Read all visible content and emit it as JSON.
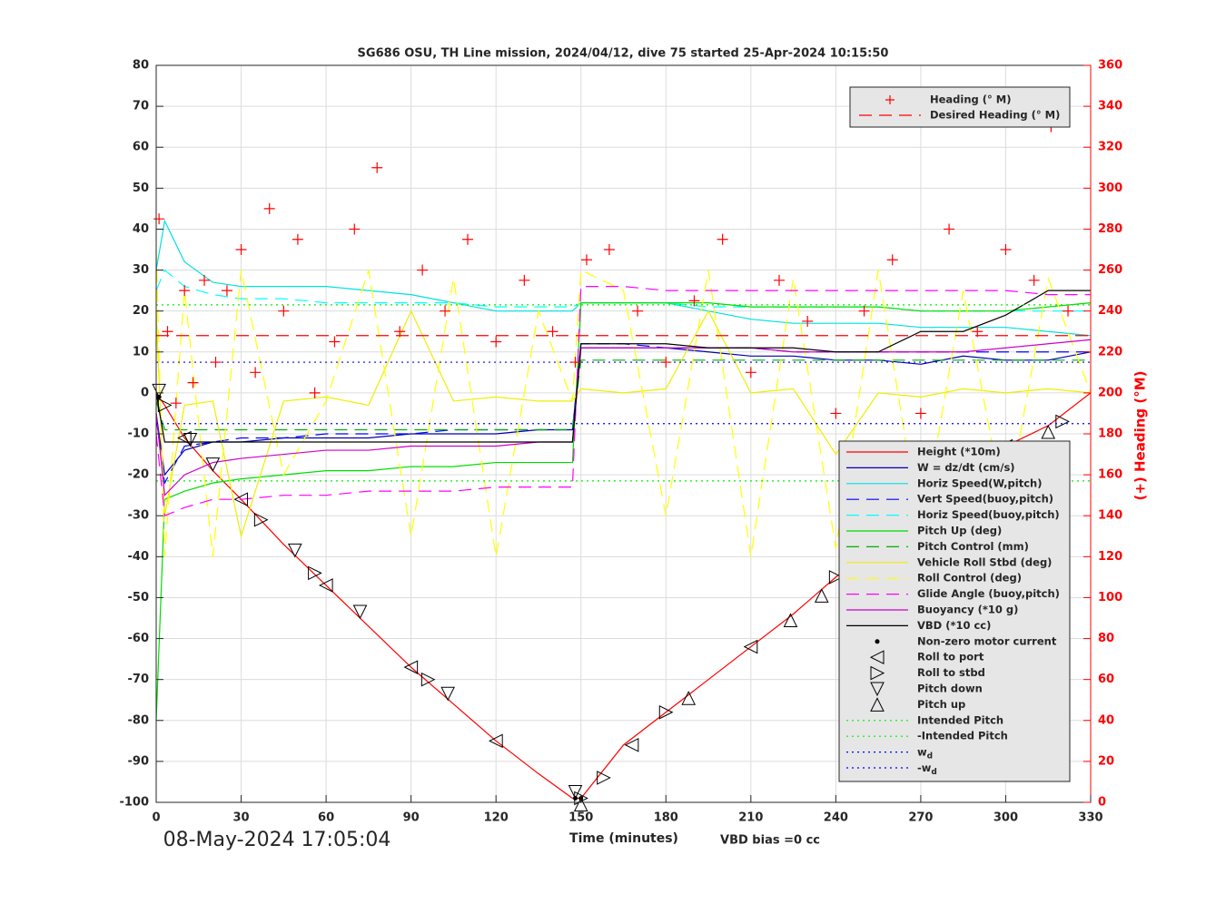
{
  "chart_data": {
    "type": "line",
    "title": "SG686 OSU, TH Line mission, 2024/04/12, dive 75 started 25-Apr-2024 10:15:50",
    "xlabel": "Time (minutes)",
    "y2label": "(+) Heading (°M)",
    "annotations": [
      "08-May-2024 17:05:04",
      "VBD bias =0 cc"
    ],
    "xlim": [
      0,
      330
    ],
    "xticks": [
      0,
      30,
      60,
      90,
      120,
      150,
      180,
      210,
      240,
      270,
      300,
      330
    ],
    "ylim": [
      -100,
      80
    ],
    "yticks": [
      -100,
      -90,
      -80,
      -70,
      -60,
      -50,
      -40,
      -30,
      -20,
      -10,
      0,
      10,
      20,
      30,
      40,
      50,
      60,
      70,
      80
    ],
    "y2lim": [
      0,
      360
    ],
    "y2ticks": [
      0,
      20,
      40,
      60,
      80,
      100,
      120,
      140,
      160,
      180,
      200,
      220,
      240,
      260,
      280,
      300,
      320,
      340,
      360
    ],
    "grid": true,
    "x": [
      0,
      3,
      10,
      20,
      30,
      45,
      60,
      75,
      90,
      105,
      120,
      135,
      147,
      150,
      165,
      180,
      195,
      210,
      225,
      240,
      255,
      270,
      285,
      300,
      315,
      330
    ],
    "series": [
      {
        "name": "Height (*10m)",
        "color": "#ff0000",
        "linestyle": "-",
        "marker": "none",
        "values": [
          0,
          -3,
          -11,
          -19,
          -26,
          -37,
          -47,
          -57,
          -67,
          -76,
          -85,
          -93,
          -99,
          -99,
          -86,
          -78,
          -70,
          -62,
          -54,
          -45,
          -37,
          -29,
          -20,
          -13,
          -8,
          0
        ]
      },
      {
        "name": "W = dz/dt (cm/s)",
        "color": "#0000b0",
        "linestyle": "-",
        "marker": "none",
        "values": [
          -5,
          -20,
          -14,
          -12,
          -12,
          -11,
          -11,
          -11,
          -10,
          -10,
          -10,
          -9,
          -9,
          11,
          11,
          11,
          10,
          9,
          9,
          8,
          8,
          7,
          9,
          8,
          8,
          10
        ]
      },
      {
        "name": "Horiz Speed(W,pitch)",
        "color": "#00e0e0",
        "linestyle": "-",
        "marker": "none",
        "values": [
          30,
          42,
          32,
          27,
          26,
          26,
          26,
          25,
          24,
          22,
          20,
          20,
          20,
          22,
          22,
          22,
          20,
          18,
          17,
          17,
          17,
          16,
          16,
          16,
          15,
          14
        ]
      },
      {
        "name": "Vert Speed(buoy,pitch)",
        "color": "#0000ff",
        "linestyle": "--",
        "marker": "none",
        "values": [
          -6,
          -22,
          -13,
          -12,
          -11,
          -11,
          -10,
          -10,
          -10,
          -9,
          -9,
          -9,
          -9,
          12,
          12,
          11,
          11,
          11,
          10,
          10,
          10,
          10,
          10,
          10,
          10,
          10
        ]
      },
      {
        "name": "Horiz Speed(buoy,pitch)",
        "color": "#00ffff",
        "linestyle": "--",
        "marker": "none",
        "values": [
          25,
          30,
          26,
          24,
          23,
          23,
          22,
          22,
          22,
          22,
          21,
          21,
          21,
          22,
          22,
          22,
          21,
          21,
          21,
          21,
          21,
          20,
          20,
          20,
          20,
          20
        ]
      },
      {
        "name": "Pitch Up (deg)",
        "color": "#00dd00",
        "linestyle": "-",
        "marker": "none",
        "values": [
          -80,
          -26,
          -24,
          -22,
          -21,
          -20,
          -19,
          -19,
          -18,
          -18,
          -17,
          -17,
          -17,
          22,
          22,
          22,
          22,
          21,
          21,
          21,
          21,
          20,
          20,
          20,
          21,
          22
        ]
      },
      {
        "name": "Pitch Control (mm)",
        "color": "#00b000",
        "linestyle": "--",
        "marker": "none",
        "values": [
          -2,
          -9,
          -9,
          -9,
          -9,
          -9,
          -9,
          -9,
          -9,
          -9,
          -9,
          -9,
          -9,
          8,
          8,
          8,
          8,
          8,
          8,
          8,
          8,
          8,
          8,
          8,
          8,
          8
        ]
      },
      {
        "name": "Vehicle Roll Stbd (deg)",
        "color": "#eeee00",
        "linestyle": "-",
        "marker": "none",
        "values": [
          20,
          -30,
          -3,
          -2,
          -35,
          -2,
          -1,
          -3,
          20,
          -2,
          -1,
          -2,
          -2,
          1,
          0,
          1,
          20,
          0,
          1,
          -15,
          0,
          -1,
          1,
          0,
          1,
          0
        ]
      },
      {
        "name": "Roll Control (deg)",
        "color": "#ffff00",
        "linestyle": "--",
        "marker": "none",
        "values": [
          35,
          -40,
          25,
          -40,
          30,
          -20,
          -2,
          30,
          -35,
          28,
          -40,
          20,
          -2,
          30,
          25,
          -30,
          30,
          -40,
          28,
          -38,
          30,
          -35,
          25,
          -30,
          28,
          0
        ]
      },
      {
        "name": "Glide Angle (buoy,pitch)",
        "color": "#ff00ff",
        "linestyle": "--",
        "marker": "none",
        "values": [
          -10,
          -30,
          -28,
          -26,
          -26,
          -25,
          -25,
          -24,
          -24,
          -24,
          -23,
          -23,
          -23,
          26,
          26,
          25,
          25,
          25,
          25,
          25,
          25,
          25,
          25,
          25,
          24,
          24
        ]
      },
      {
        "name": "Buoyancy (*10 g)",
        "color": "#cc00cc",
        "linestyle": "-",
        "marker": "none",
        "values": [
          -5,
          -25,
          -20,
          -17,
          -16,
          -15,
          -14,
          -14,
          -13,
          -13,
          -13,
          -12,
          -12,
          11,
          11,
          11,
          11,
          11,
          10,
          10,
          10,
          10,
          10,
          11,
          12,
          13
        ]
      },
      {
        "name": "VBD (*10 cc)",
        "color": "#000000",
        "linestyle": "-",
        "marker": "none",
        "values": [
          0,
          -12,
          -12,
          -12,
          -12,
          -12,
          -12,
          -12,
          -12,
          -12,
          -12,
          -12,
          -12,
          12,
          12,
          12,
          11,
          11,
          11,
          10,
          10,
          15,
          15,
          19,
          25,
          25
        ]
      },
      {
        "name": "Non-zero motor current",
        "color": "#000000",
        "linestyle": "none",
        "marker": ".",
        "x": [
          1,
          148,
          150
        ],
        "values": [
          -1,
          -99,
          -99
        ]
      },
      {
        "name": "Roll to port",
        "color": "#000000",
        "linestyle": "none",
        "marker": "<",
        "x": [
          10,
          30,
          60,
          90,
          120,
          168,
          210,
          255,
          300
        ],
        "values": [
          -11,
          -26,
          -47,
          -67,
          -85,
          -86,
          -62,
          -37,
          -13
        ]
      },
      {
        "name": "Roll to stbd",
        "color": "#000000",
        "linestyle": "none",
        "marker": ">",
        "x": [
          3,
          37,
          56,
          96,
          150,
          158,
          180,
          240,
          285,
          320
        ],
        "values": [
          -3,
          -31,
          -44,
          -70,
          -99,
          -94,
          -78,
          -45,
          -20,
          -7
        ]
      },
      {
        "name": "Pitch down",
        "color": "#000000",
        "linestyle": "none",
        "marker": "v",
        "x": [
          1,
          12,
          20,
          49,
          72,
          103,
          148
        ],
        "values": [
          -1,
          -13,
          -19,
          -40,
          -55,
          -75,
          -99
        ]
      },
      {
        "name": "Pitch up",
        "color": "#000000",
        "linestyle": "none",
        "marker": "^",
        "x": [
          150,
          188,
          224,
          235,
          264,
          290,
          315
        ],
        "values": [
          -99,
          -73,
          -54,
          -48,
          -33,
          -17,
          -8
        ]
      },
      {
        "name": "Intended Pitch",
        "color": "#00ee00",
        "linestyle": ":",
        "marker": "none",
        "x": [
          0,
          330
        ],
        "values": [
          21.5,
          21.5
        ]
      },
      {
        "name": "-Intended Pitch",
        "color": "#00ee00",
        "linestyle": ":",
        "marker": "none",
        "x": [
          0,
          330
        ],
        "values": [
          -21.5,
          -21.5
        ]
      },
      {
        "name": "w_d",
        "color": "#0000ff",
        "linestyle": ":",
        "marker": "none",
        "x": [
          0,
          330
        ],
        "values": [
          7.5,
          7.5
        ]
      },
      {
        "name": "-w_d",
        "color": "#0000ff",
        "linestyle": ":",
        "marker": "none",
        "x": [
          0,
          330
        ],
        "values": [
          -7.5,
          -7.5
        ]
      },
      {
        "name": "Heading (° M)",
        "color": "#ff0000",
        "linestyle": "none",
        "marker": "+",
        "axis": "y2",
        "x": [
          1,
          4,
          7,
          10,
          13,
          17,
          21,
          25,
          30,
          35,
          40,
          45,
          50,
          56,
          63,
          70,
          78,
          86,
          94,
          102,
          110,
          120,
          130,
          140,
          148,
          152,
          160,
          170,
          180,
          190,
          200,
          210,
          220,
          230,
          240,
          250,
          260,
          270,
          280,
          290,
          300,
          310,
          316,
          322
        ],
        "values": [
          285,
          230,
          195,
          250,
          205,
          255,
          215,
          250,
          270,
          210,
          290,
          240,
          275,
          200,
          225,
          280,
          310,
          230,
          260,
          240,
          275,
          225,
          255,
          230,
          215,
          265,
          270,
          240,
          215,
          245,
          275,
          210,
          255,
          235,
          190,
          240,
          265,
          190,
          280,
          230,
          270,
          255,
          330,
          240
        ]
      },
      {
        "name": "Desired Heading (° M)",
        "color": "#ff0000",
        "linestyle": "--",
        "marker": "none",
        "axis": "y2",
        "x": [
          0,
          330
        ],
        "values": [
          228,
          228
        ]
      }
    ]
  }
}
